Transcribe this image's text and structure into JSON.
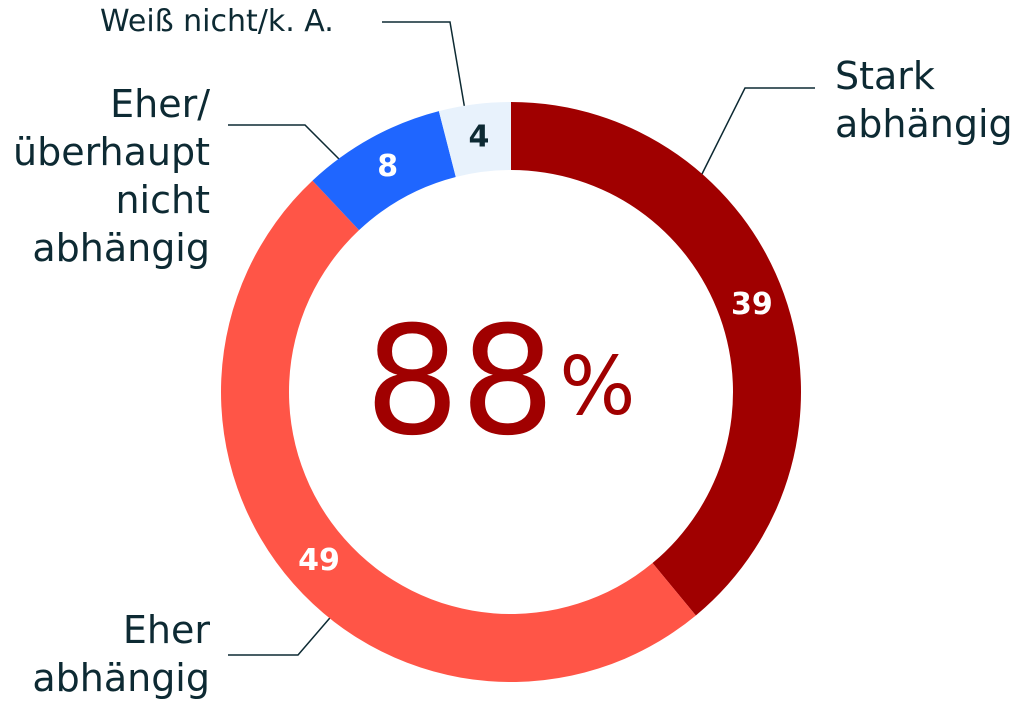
{
  "chart_data": {
    "type": "donut",
    "categories": [
      "Stark\nabhängig",
      "Eher\nabhängig",
      "Eher/\nüberhaupt\nnicht\nabhängig",
      "Weiß nicht/k. A."
    ],
    "values": [
      39,
      49,
      8,
      4
    ],
    "colors": [
      "#a00000",
      "#ff5547",
      "#1f66ff",
      "#e8f2fc"
    ],
    "center_label": "88",
    "center_unit": "%"
  }
}
